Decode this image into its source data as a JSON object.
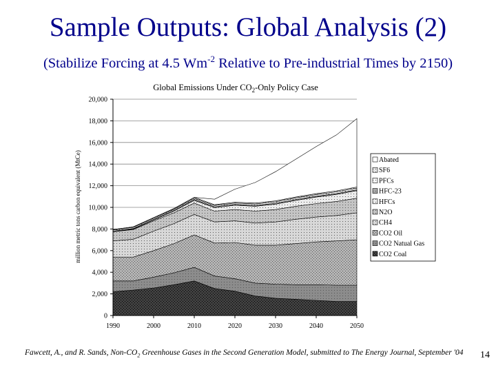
{
  "slide": {
    "title": "Sample Outputs: Global Analysis (2)",
    "subtitle_pre": "(Stabilize Forcing at 4.5 Wm",
    "subtitle_sup": "-2",
    "subtitle_post": " Relative to Pre-industrial Times by 2150)",
    "citation_pre": "Fawcett, A., and R. Sands, Non-CO",
    "citation_sub": "2",
    "citation_post": " Greenhouse Gases in the Second Generation Model, submitted to The Energy Journal, September '04",
    "page_number": "14"
  },
  "chart_data": {
    "type": "area",
    "stacked": true,
    "title_pre": "Global Emissions Under CO",
    "title_sub": "2",
    "title_post": "-Only Policy Case",
    "ylabel": "million metric tons carbon equivalent (MtCe)",
    "xlabel": "",
    "x": [
      1990,
      1995,
      2000,
      2005,
      2010,
      2015,
      2020,
      2025,
      2030,
      2035,
      2040,
      2045,
      2050
    ],
    "xticks": [
      1990,
      2000,
      2010,
      2020,
      2030,
      2040,
      2050
    ],
    "xlim": [
      1990,
      2050
    ],
    "ylim": [
      0,
      20000
    ],
    "yticks": [
      0,
      2000,
      4000,
      6000,
      8000,
      10000,
      12000,
      14000,
      16000,
      18000,
      20000
    ],
    "ytick_labels": [
      "0",
      "2,000",
      "4,000",
      "6,000",
      "8,000",
      "10,000",
      "12,000",
      "14,000",
      "16,000",
      "18,000",
      "20,000"
    ],
    "grid": "horizontal",
    "legend_position": "right",
    "series": [
      {
        "name": "CO2 Coal",
        "color": "#404040",
        "values": [
          2200,
          2350,
          2550,
          2850,
          3200,
          2500,
          2250,
          1800,
          1600,
          1500,
          1400,
          1300,
          1300
        ]
      },
      {
        "name": "CO2 Natual Gas",
        "color": "#8c8c8c",
        "values": [
          1000,
          850,
          1000,
          1100,
          1250,
          1150,
          1150,
          1200,
          1300,
          1350,
          1450,
          1500,
          1500
        ]
      },
      {
        "name": "CO2 Oil",
        "color": "#b4b4b4",
        "values": [
          2200,
          2200,
          2450,
          2700,
          3000,
          3050,
          3350,
          3500,
          3600,
          3800,
          3950,
          4100,
          4200
        ]
      },
      {
        "name": "CH4",
        "color": "#d8d8d8",
        "values": [
          1500,
          1650,
          1800,
          1850,
          1900,
          1950,
          2000,
          2050,
          2150,
          2250,
          2300,
          2350,
          2500
        ]
      },
      {
        "name": "N2O",
        "color": "#c4c4c4",
        "values": [
          850,
          900,
          950,
          1000,
          1050,
          1000,
          1050,
          1100,
          1150,
          1200,
          1250,
          1300,
          1350
        ]
      },
      {
        "name": "HFCs",
        "color": "#ececec",
        "values": [
          0,
          50,
          80,
          150,
          250,
          320,
          400,
          450,
          500,
          550,
          600,
          650,
          700
        ]
      },
      {
        "name": "HFC-23",
        "color": "#a8a8a8",
        "values": [
          50,
          50,
          60,
          70,
          80,
          80,
          80,
          80,
          80,
          80,
          80,
          80,
          80
        ]
      },
      {
        "name": "PFCs",
        "color": "#f4f4f4",
        "values": [
          100,
          100,
          100,
          100,
          120,
          120,
          120,
          130,
          130,
          140,
          140,
          150,
          150
        ]
      },
      {
        "name": "SF6",
        "color": "#e4e4e4",
        "values": [
          50,
          50,
          60,
          70,
          80,
          80,
          80,
          90,
          90,
          90,
          100,
          100,
          100
        ]
      },
      {
        "name": "Abated",
        "color": "#ffffff",
        "values": [
          0,
          0,
          0,
          0,
          0,
          500,
          1200,
          1900,
          2700,
          3500,
          4350,
          5170,
          6320
        ]
      }
    ],
    "legend_order": [
      "Abated",
      "SF6",
      "PFCs",
      "HFC-23",
      "HFCs",
      "N2O",
      "CH4",
      "CO2 Oil",
      "CO2 Natual Gas",
      "CO2 Coal"
    ]
  }
}
